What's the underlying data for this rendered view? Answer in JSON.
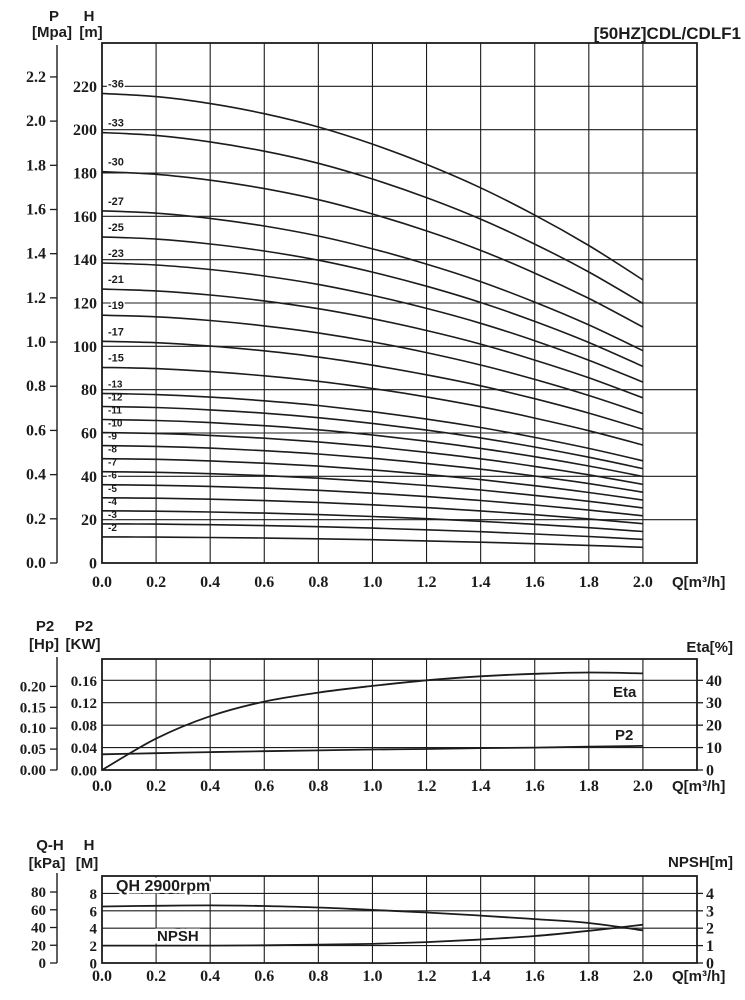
{
  "title": "[50HZ]CDL/CDLF1",
  "colors": {
    "line": "#1c1c1c",
    "background": "#ffffff"
  },
  "chart_data": [
    {
      "id": "head-capacity",
      "type": "line",
      "title": "[50HZ]CDL/CDLF1",
      "xlabel": "Q[m³/h]",
      "xlim": [
        0,
        2.2
      ],
      "x_ticks": [
        "0.0",
        "0.2",
        "0.4",
        "0.6",
        "0.8",
        "1.0",
        "1.2",
        "1.4",
        "1.6",
        "1.8",
        "2.0"
      ],
      "y_left_primary": {
        "name": "P",
        "unit": "[Mpa]",
        "ticks": [
          "0.0",
          "0.2",
          "0.4",
          "0.6",
          "0.8",
          "1.0",
          "1.2",
          "1.4",
          "1.6",
          "1.8",
          "2.0",
          "2.2"
        ]
      },
      "y_left_secondary": {
        "name": "H",
        "unit": "[m]",
        "ticks": [
          "0",
          "20",
          "40",
          "60",
          "80",
          "100",
          "120",
          "140",
          "160",
          "180",
          "200",
          "220"
        ],
        "ylim": [
          0,
          240
        ],
        "grid_step": 20
      },
      "series_model": {
        "q": [
          0,
          0.2,
          0.4,
          0.6,
          0.8,
          1.0,
          1.2,
          1.4,
          1.6,
          1.8,
          2.0
        ],
        "unit_head_m": [
          6.02,
          5.98,
          5.89,
          5.76,
          5.59,
          5.37,
          5.11,
          4.81,
          4.46,
          4.07,
          3.63
        ],
        "stages": [
          2,
          3,
          4,
          5,
          6,
          7,
          8,
          9,
          10,
          11,
          12,
          13,
          15,
          17,
          19,
          21,
          23,
          25,
          27,
          30,
          33,
          36
        ],
        "labels": [
          "-2",
          "-3",
          "-4",
          "-5",
          "-6",
          "-7",
          "-8",
          "-9",
          "-10",
          "-11",
          "-12",
          "-13",
          "-15",
          "-17",
          "-19",
          "-21",
          "-23",
          "-25",
          "-27",
          "-30",
          "-33",
          "-36"
        ],
        "rule": "head_m = stage × unit_head_m at each q"
      }
    },
    {
      "id": "power-efficiency",
      "type": "line",
      "xlabel": "Q[m³/h]",
      "xlim": [
        0,
        2.2
      ],
      "x_ticks": [
        "0.0",
        "0.2",
        "0.4",
        "0.6",
        "0.8",
        "1.0",
        "1.2",
        "1.4",
        "1.6",
        "1.8",
        "2.0"
      ],
      "y_left_primary": {
        "name": "P2",
        "unit": "[Hp]",
        "ticks": [
          "0.00",
          "0.05",
          "0.10",
          "0.15",
          "0.20"
        ]
      },
      "y_left_secondary": {
        "name": "P2",
        "unit": "[KW]",
        "ticks": [
          "0.00",
          "0.04",
          "0.08",
          "0.12",
          "0.16"
        ],
        "ylim": [
          0,
          0.198
        ],
        "grid_step": 0.04
      },
      "y_right": {
        "label": "Eta[%]",
        "ticks": [
          "0",
          "10",
          "20",
          "30",
          "40"
        ]
      },
      "series": [
        {
          "name": "Eta",
          "unit": "%",
          "label": "Eta",
          "q": [
            0,
            0.2,
            0.4,
            0.6,
            0.8,
            1.0,
            1.2,
            1.4,
            1.6,
            1.8,
            2.0
          ],
          "values": [
            0,
            14,
            24,
            30.5,
            34.5,
            37.5,
            40,
            41.8,
            42.9,
            43.5,
            43.1
          ]
        },
        {
          "name": "P2",
          "unit": "KW",
          "label": "P2",
          "q": [
            0,
            0.2,
            0.4,
            0.6,
            0.8,
            1.0,
            1.2,
            1.4,
            1.6,
            1.8,
            2.0
          ],
          "values": [
            0.028,
            0.03,
            0.032,
            0.0335,
            0.035,
            0.0365,
            0.0375,
            0.039,
            0.04,
            0.0415,
            0.043
          ]
        }
      ]
    },
    {
      "id": "qh-npsh",
      "type": "line",
      "xlabel": "Q[m³/h]",
      "xlim": [
        0,
        2.2
      ],
      "x_ticks": [
        "0.0",
        "0.2",
        "0.4",
        "0.6",
        "0.8",
        "1.0",
        "1.2",
        "1.4",
        "1.6",
        "1.8",
        "2.0"
      ],
      "y_left_primary": {
        "name": "Q-H",
        "unit": "[kPa]",
        "ticks": [
          "0",
          "20",
          "40",
          "60",
          "80"
        ]
      },
      "y_left_secondary": {
        "name": "H",
        "unit": "[M]",
        "ticks": [
          "0",
          "2",
          "4",
          "6",
          "8"
        ],
        "ylim": [
          0,
          10
        ],
        "grid_step": 2
      },
      "y_right": {
        "label": "NPSH[m]",
        "ticks": [
          "0",
          "1",
          "2",
          "3",
          "4"
        ]
      },
      "series": [
        {
          "name": "QH",
          "unit": "m",
          "label": "QH 2900rpm",
          "q": [
            0,
            0.2,
            0.4,
            0.6,
            0.8,
            1.0,
            1.2,
            1.4,
            1.6,
            1.8,
            2.0
          ],
          "values": [
            6.5,
            6.58,
            6.62,
            6.55,
            6.38,
            6.1,
            5.8,
            5.45,
            5.05,
            4.6,
            3.75
          ]
        },
        {
          "name": "NPSH",
          "unit": "m",
          "label": "NPSH",
          "q": [
            0,
            0.2,
            0.4,
            0.6,
            0.8,
            1.0,
            1.2,
            1.4,
            1.6,
            1.8,
            2.0
          ],
          "values": [
            1.0,
            1.0,
            1.0,
            1.02,
            1.05,
            1.1,
            1.2,
            1.35,
            1.55,
            1.85,
            2.2
          ]
        }
      ]
    }
  ]
}
